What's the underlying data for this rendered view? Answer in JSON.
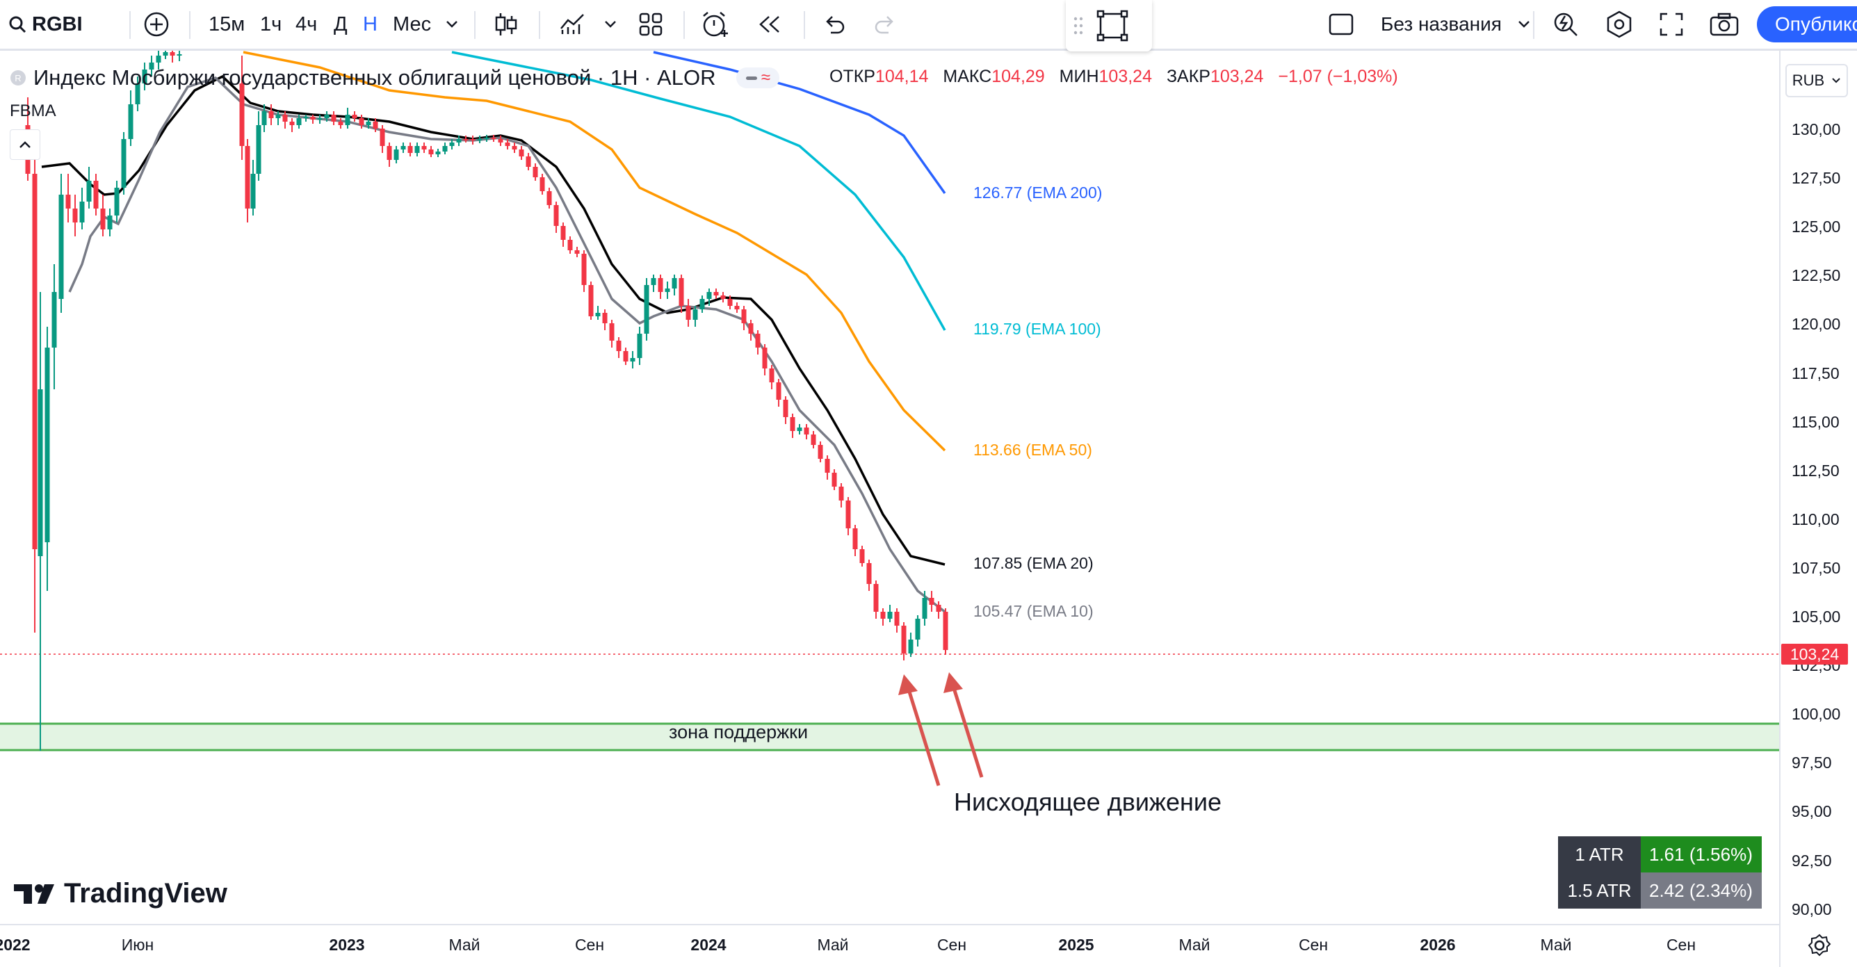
{
  "toolbar": {
    "symbol": "RGBI",
    "intervals": [
      "15м",
      "1ч",
      "4ч",
      "Д",
      "Н",
      "Мес"
    ],
    "active_interval": "Н",
    "layout_name": "Без названия",
    "publish_label": "Опублико"
  },
  "legend": {
    "title": "Индекс Мосбиржи государственных облигаций ценовой · 1Н · ALOR",
    "open_label": "ОТКР",
    "open": "104,14",
    "high_label": "МАКС",
    "high": "104,29",
    "low_label": "МИН",
    "low": "103,24",
    "close_label": "ЗАКР",
    "close": "103,24",
    "change": "−1,07 (−1,03%)",
    "indicator": "FBMA",
    "currency": "RUB"
  },
  "ema_labels": [
    {
      "text": "126.77 (EMA 200)",
      "color": "#2962ff"
    },
    {
      "text": "119.79 (EMA 100)",
      "color": "#00bcd4"
    },
    {
      "text": "113.66 (EMA 50)",
      "color": "#ff9800"
    },
    {
      "text": "107.85 (EMA 20)",
      "color": "#131722"
    },
    {
      "text": "105.47 (EMA 10)",
      "color": "#787b86"
    }
  ],
  "price_axis": [
    "130,00",
    "127,50",
    "125,00",
    "122,50",
    "120,00",
    "117,50",
    "115,00",
    "112,50",
    "110,00",
    "107,50",
    "105,00",
    "102,50",
    "100,00",
    "97,50",
    "95,00",
    "92,50",
    "90,00"
  ],
  "current_price": "103,24",
  "time_axis": [
    {
      "label": "2022",
      "bold": true
    },
    {
      "label": "Июн",
      "bold": false
    },
    {
      "label": "2023",
      "bold": true
    },
    {
      "label": "Май",
      "bold": false
    },
    {
      "label": "Сен",
      "bold": false
    },
    {
      "label": "2024",
      "bold": true
    },
    {
      "label": "Май",
      "bold": false
    },
    {
      "label": "Сен",
      "bold": false
    },
    {
      "label": "2025",
      "bold": true
    },
    {
      "label": "Май",
      "bold": false
    },
    {
      "label": "Сен",
      "bold": false
    },
    {
      "label": "2026",
      "bold": true
    },
    {
      "label": "Май",
      "bold": false
    },
    {
      "label": "Сен",
      "bold": false
    }
  ],
  "support_zone_label": "зона поддержки",
  "annotation": "Нисходящее движение",
  "atr": [
    {
      "k": "1 ATR",
      "v": "1.61 (1.56%)"
    },
    {
      "k": "1.5 ATR",
      "v": "2.42 (2.34%)"
    }
  ],
  "logo_text": "TradingView",
  "colors": {
    "up": "#089981",
    "down": "#f23645",
    "accent": "#2962ff",
    "zone": "#4caf50"
  }
}
